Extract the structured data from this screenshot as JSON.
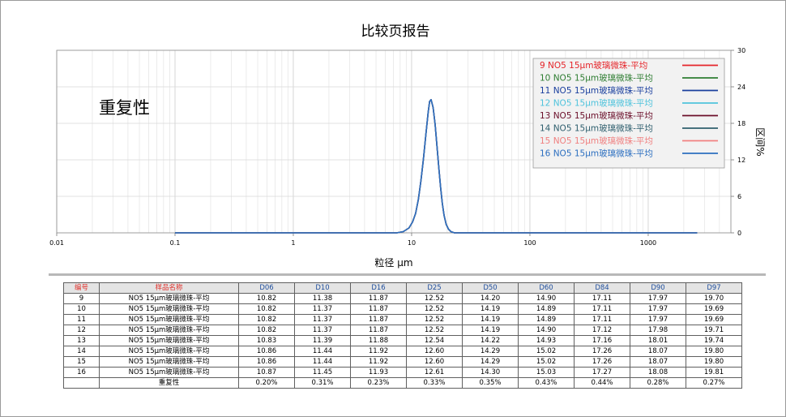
{
  "chart_data": {
    "type": "line",
    "title": "比较页报告",
    "annotation": "重复性",
    "xlabel": "粒径 µm",
    "ylabel": "区间%",
    "x_scale": "log",
    "xlim": [
      0.01,
      5000
    ],
    "ylim": [
      0,
      30
    ],
    "x_ticks": [
      "0.01",
      "0.1",
      "1",
      "10",
      "100",
      "1000"
    ],
    "y_ticks": [
      "0",
      "6",
      "12",
      "18",
      "24",
      "30"
    ],
    "grid": true,
    "legend_position": "top-right",
    "curve": {
      "x": [
        0.1,
        5,
        7.5,
        8.5,
        9.5,
        10.2,
        10.8,
        11.4,
        12.0,
        12.6,
        13.2,
        13.8,
        14.2,
        14.6,
        15.2,
        15.8,
        16.4,
        17.0,
        17.6,
        18.2,
        18.8,
        19.6,
        20.5,
        21.5,
        23,
        30,
        2600
      ],
      "y": [
        0,
        0,
        0,
        0.2,
        0.8,
        1.8,
        3.2,
        5.5,
        8.6,
        12.2,
        16.2,
        19.8,
        21.6,
        21.9,
        20.6,
        17.8,
        14.2,
        10.6,
        7.4,
        4.8,
        2.9,
        1.4,
        0.6,
        0.2,
        0,
        0,
        0
      ]
    },
    "series": [
      {
        "name": "9   NO5 15µm玻璃微珠-平均",
        "color": "#e5252a"
      },
      {
        "name": "10  NO5 15µm玻璃微珠-平均",
        "color": "#2e7d32"
      },
      {
        "name": "11  NO5 15µm玻璃微珠-平均",
        "color": "#1a3f9e"
      },
      {
        "name": "12  NO5 15µm玻璃微珠-平均",
        "color": "#4fc3dc"
      },
      {
        "name": "13  NO5 15µm玻璃微珠-平均",
        "color": "#6b0f2a"
      },
      {
        "name": "14  NO5 15µm玻璃微珠-平均",
        "color": "#2f5f6e"
      },
      {
        "name": "15  NO5 15µm玻璃微珠-平均",
        "color": "#f08080"
      },
      {
        "name": "16  NO5 15µm玻璃微珠-平均",
        "color": "#2c6fc0"
      }
    ]
  },
  "table": {
    "headers": [
      "编号",
      "样品名称",
      "D06",
      "D10",
      "D16",
      "D25",
      "D50",
      "D60",
      "D84",
      "D90",
      "D97"
    ],
    "rows": [
      [
        "9",
        "NO5 15µm玻璃微珠-平均",
        "10.82",
        "11.38",
        "11.87",
        "12.52",
        "14.20",
        "14.90",
        "17.11",
        "17.97",
        "19.70"
      ],
      [
        "10",
        "NO5 15µm玻璃微珠-平均",
        "10.82",
        "11.37",
        "11.87",
        "12.52",
        "14.19",
        "14.89",
        "17.11",
        "17.97",
        "19.69"
      ],
      [
        "11",
        "NO5 15µm玻璃微珠-平均",
        "10.82",
        "11.37",
        "11.87",
        "12.52",
        "14.19",
        "14.89",
        "17.11",
        "17.97",
        "19.69"
      ],
      [
        "12",
        "NO5 15µm玻璃微珠-平均",
        "10.82",
        "11.37",
        "11.87",
        "12.52",
        "14.19",
        "14.90",
        "17.12",
        "17.98",
        "19.71"
      ],
      [
        "13",
        "NO5 15µm玻璃微珠-平均",
        "10.83",
        "11.39",
        "11.88",
        "12.54",
        "14.22",
        "14.93",
        "17.16",
        "18.01",
        "19.74"
      ],
      [
        "14",
        "NO5 15µm玻璃微珠-平均",
        "10.86",
        "11.44",
        "11.92",
        "12.60",
        "14.29",
        "15.02",
        "17.26",
        "18.07",
        "19.80"
      ],
      [
        "15",
        "NO5 15µm玻璃微珠-平均",
        "10.86",
        "11.44",
        "11.92",
        "12.60",
        "14.29",
        "15.02",
        "17.26",
        "18.07",
        "19.80"
      ],
      [
        "16",
        "NO5 15µm玻璃微珠-平均",
        "10.87",
        "11.45",
        "11.93",
        "12.61",
        "14.30",
        "15.03",
        "17.27",
        "18.08",
        "19.81"
      ]
    ],
    "summary": {
      "label": "重复性",
      "values": [
        "0.20%",
        "0.31%",
        "0.23%",
        "0.33%",
        "0.35%",
        "0.43%",
        "0.44%",
        "0.28%",
        "0.27%"
      ]
    }
  }
}
